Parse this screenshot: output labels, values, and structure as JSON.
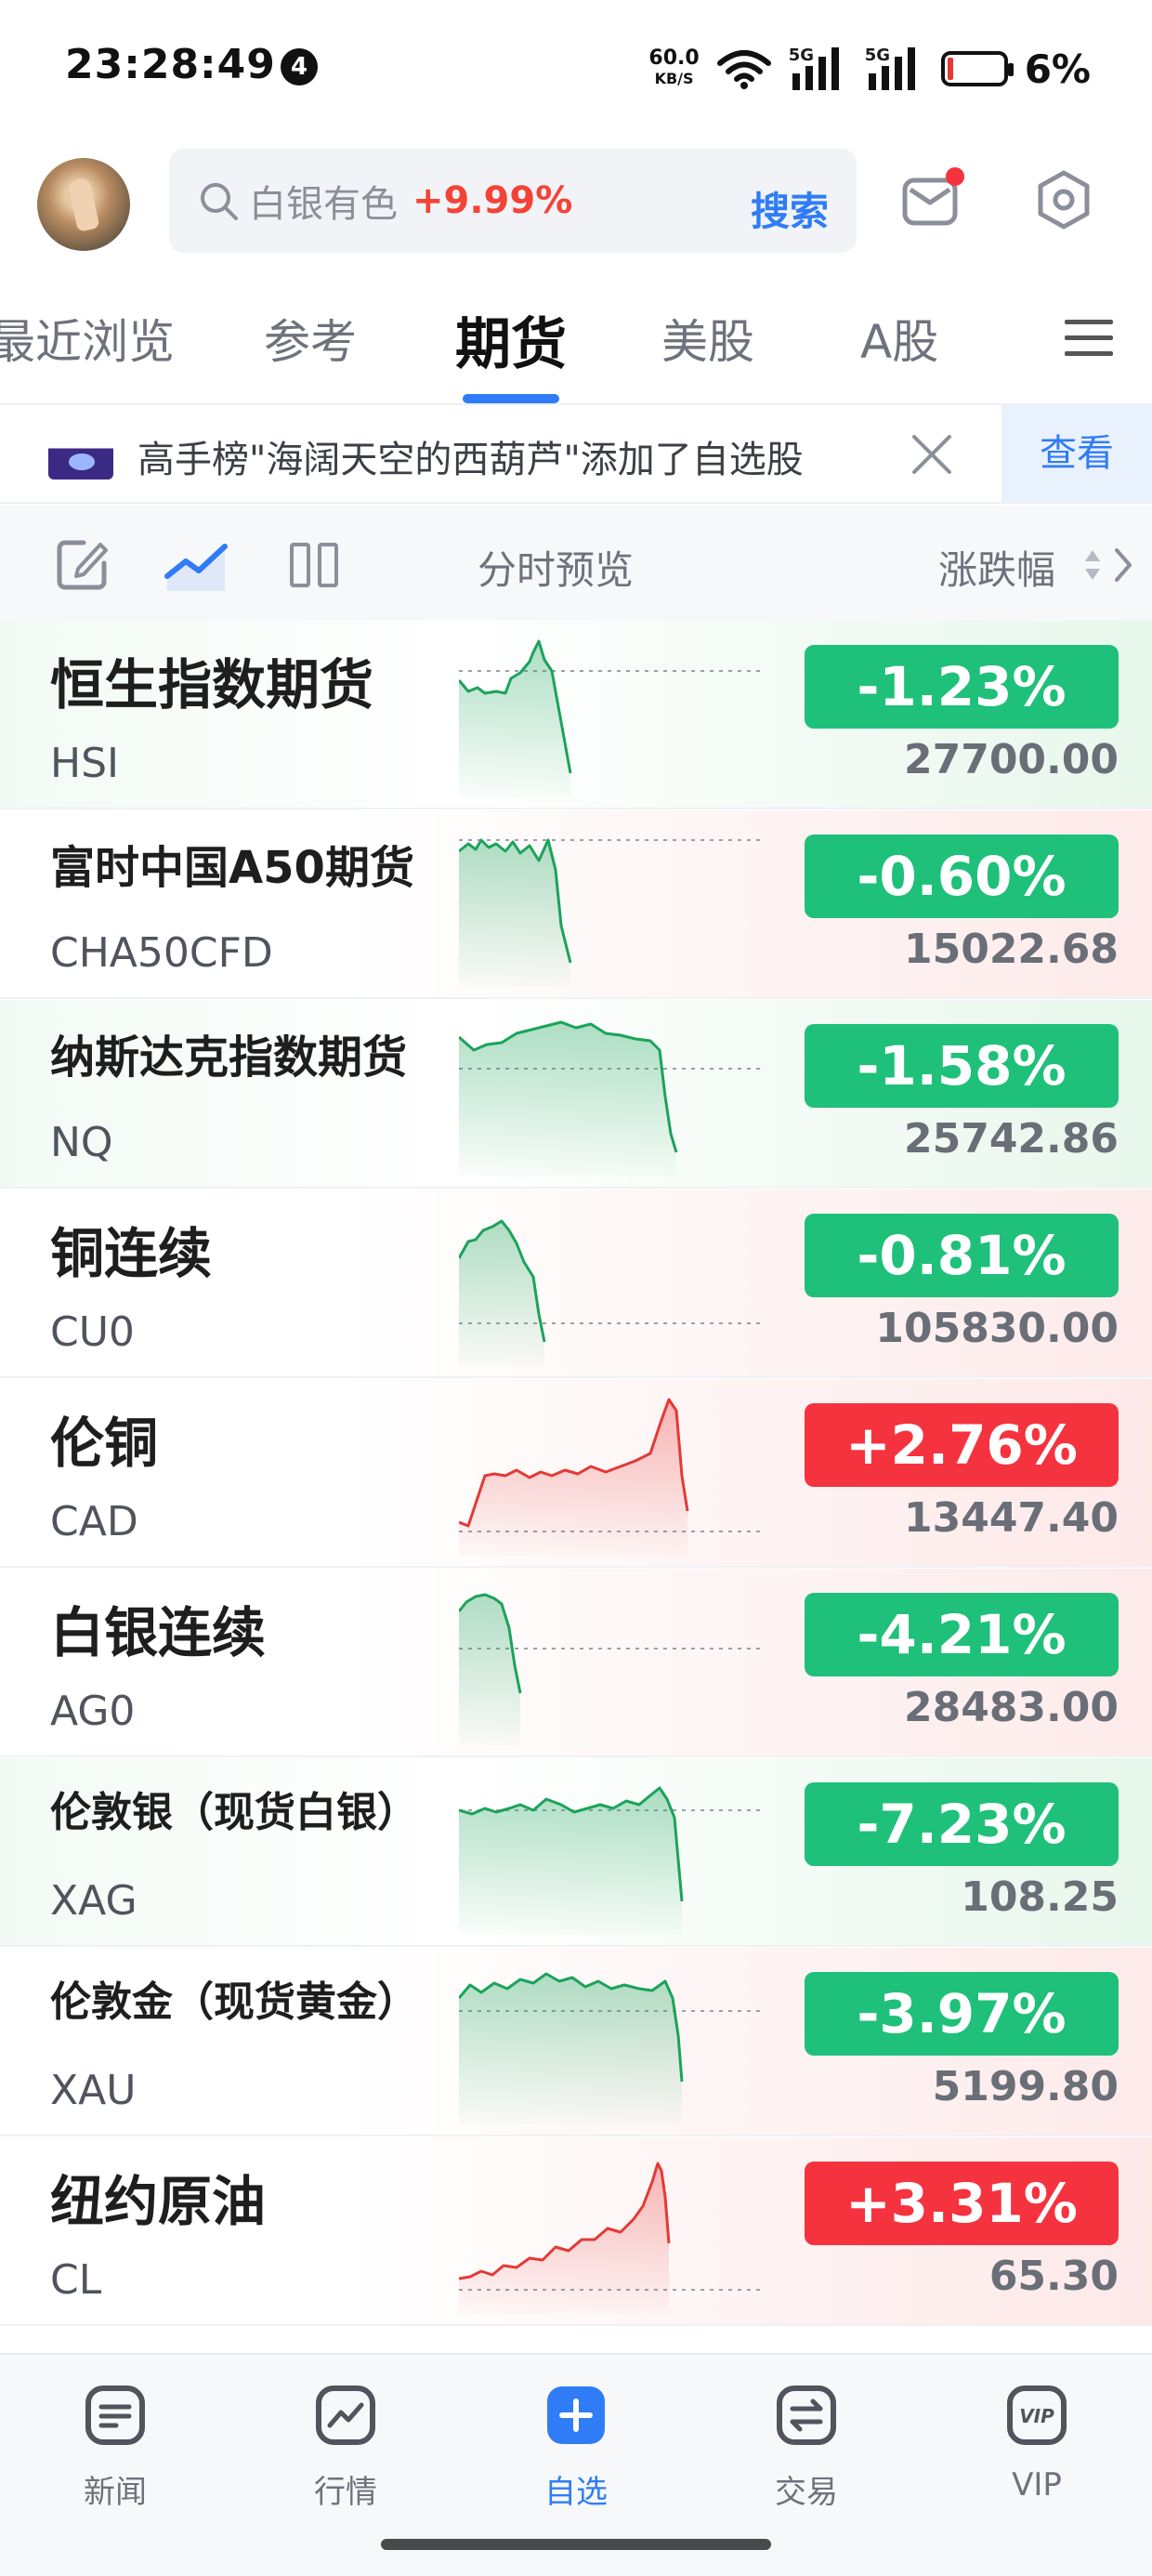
{
  "status_bar": {
    "time": "23:28:49",
    "notification_count": "4",
    "net_speed_value": "60.0",
    "net_speed_unit": "KB/S",
    "signal_1": "5G",
    "signal_2": "5G",
    "battery": "6%"
  },
  "header": {
    "search_placeholder": "白银有色",
    "search_change": "+9.99%",
    "search_button": "搜索"
  },
  "tabs": [
    {
      "label": "最近浏览",
      "active": false
    },
    {
      "label": "参考",
      "active": false
    },
    {
      "label": "期货",
      "active": true
    },
    {
      "label": "美股",
      "active": false
    },
    {
      "label": "A股",
      "active": false
    }
  ],
  "notice": {
    "text": "高手榜\"海阔天空的西葫芦\"添加了自选股",
    "view_button": "查看"
  },
  "toolbar": {
    "preview_label": "分时预览",
    "sort_label": "涨跌幅"
  },
  "colors": {
    "accent": "#2f7cf6",
    "up": "#f5333f",
    "down": "#1fc07a"
  },
  "rows": [
    {
      "name": "恒生指数期货",
      "code": "HSI",
      "change": "-1.23%",
      "price": "27700.00",
      "trend": "down"
    },
    {
      "name": "富时中国A50期货",
      "code": "CHA50CFD",
      "change": "-0.60%",
      "price": "15022.68",
      "trend": "down"
    },
    {
      "name": "纳斯达克指数期货",
      "code": "NQ",
      "change": "-1.58%",
      "price": "25742.86",
      "trend": "down"
    },
    {
      "name": "铜连续",
      "code": "CU0",
      "change": "-0.81%",
      "price": "105830.00",
      "trend": "down"
    },
    {
      "name": "伦铜",
      "code": "CAD",
      "change": "+2.76%",
      "price": "13447.40",
      "trend": "up"
    },
    {
      "name": "白银连续",
      "code": "AG0",
      "change": "-4.21%",
      "price": "28483.00",
      "trend": "down"
    },
    {
      "name": "伦敦银（现货白银）",
      "code": "XAG",
      "change": "-7.23%",
      "price": "108.25",
      "trend": "down"
    },
    {
      "name": "伦敦金（现货黄金）",
      "code": "XAU",
      "change": "-3.97%",
      "price": "5199.80",
      "trend": "down"
    },
    {
      "name": "纽约原油",
      "code": "CL",
      "change": "+3.31%",
      "price": "65.30",
      "trend": "up"
    }
  ],
  "bottom_nav": [
    {
      "label": "新闻",
      "icon": "news-icon",
      "active": false
    },
    {
      "label": "行情",
      "icon": "market-icon",
      "active": false
    },
    {
      "label": "自选",
      "icon": "add-watchlist-icon",
      "active": true
    },
    {
      "label": "交易",
      "icon": "trade-icon",
      "active": false
    },
    {
      "label": "VIP",
      "icon": "vip-icon",
      "active": false
    }
  ]
}
